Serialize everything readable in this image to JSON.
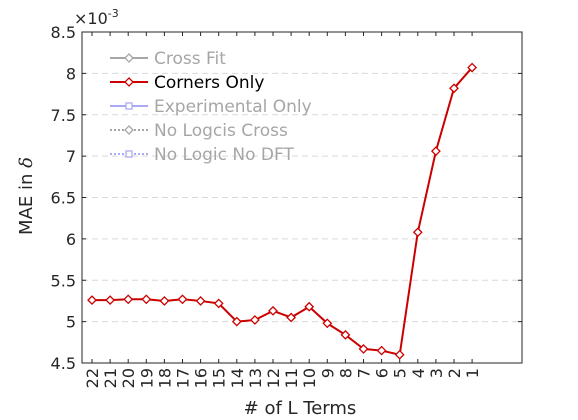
{
  "chart_data": {
    "type": "line",
    "xlabel": "# of L Terms",
    "ylabel_text": "MAE in ",
    "ylabel_symbol": "δ",
    "y_multiplier_base": "×10",
    "y_multiplier_exp": "-3",
    "ylim": [
      4.5,
      8.5
    ],
    "yticks": [
      4.5,
      5,
      5.5,
      6,
      6.5,
      7,
      7.5,
      8,
      8.5
    ],
    "ytick_labels": [
      "4.5",
      "5",
      "5.5",
      "6",
      "6.5",
      "7",
      "7.5",
      "8",
      "8.5"
    ],
    "x_categories": [
      "22",
      "21",
      "20",
      "19",
      "18",
      "17",
      "16",
      "15",
      "14",
      "13",
      "12",
      "11",
      "10",
      "9",
      "8",
      "7",
      "6",
      "5",
      "4",
      "3",
      "2",
      "1"
    ],
    "grid": "horizontal-dashed",
    "legend_position": "top-left",
    "series": [
      {
        "name": "Cross Fit",
        "color": "#a6a6a6",
        "marker": "diamond",
        "line": "solid",
        "values": []
      },
      {
        "name": "Corners Only",
        "color": "#cc0000",
        "marker": "diamond",
        "line": "solid",
        "values": [
          5.26,
          5.26,
          5.27,
          5.27,
          5.25,
          5.27,
          5.25,
          5.22,
          5.0,
          5.02,
          5.13,
          5.05,
          5.18,
          4.98,
          4.84,
          4.67,
          4.65,
          4.6,
          6.08,
          7.06,
          7.82,
          8.07
        ]
      },
      {
        "name": "Experimental Only",
        "color": "#a9a9f5",
        "marker": "square",
        "line": "solid",
        "values": []
      },
      {
        "name": "No Logcis Cross",
        "color": "#a6a6a6",
        "marker": "diamond",
        "line": "dotted",
        "values": []
      },
      {
        "name": "No Logic No DFT",
        "color": "#a9a9f5",
        "marker": "square",
        "line": "dotted",
        "values": []
      }
    ],
    "legend_text_colors": {
      "active": "#000000",
      "inactive": "#a6a6a6"
    },
    "active_series": "Corners Only"
  }
}
